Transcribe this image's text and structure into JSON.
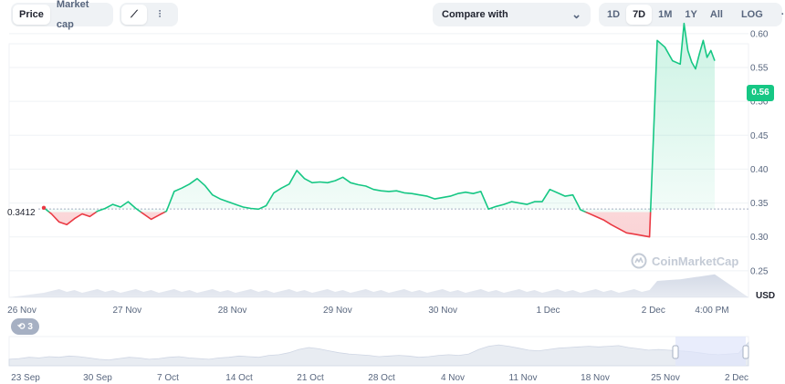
{
  "toolbar": {
    "metric_tabs": [
      {
        "label": "Price",
        "active": true
      },
      {
        "label": "Market cap",
        "active": false
      }
    ],
    "chart_style_icons": [
      {
        "icon": "line-chart-icon",
        "glyph": "⟋",
        "active": true
      },
      {
        "icon": "candlestick-icon",
        "glyph": "⫶",
        "active": false
      }
    ],
    "compare": {
      "label": "Compare with",
      "icon": "chevron-down-icon",
      "glyph": "⌄"
    },
    "ranges": [
      {
        "label": "1D",
        "active": false
      },
      {
        "label": "7D",
        "active": true
      },
      {
        "label": "1M",
        "active": false
      },
      {
        "label": "1Y",
        "active": false
      },
      {
        "label": "All",
        "active": false
      }
    ],
    "log_label": "LOG",
    "more": {
      "icon": "more-icon",
      "glyph": "···"
    }
  },
  "colors": {
    "up": "#16c784",
    "down": "#ea3943",
    "text": "#222531",
    "muted": "#58667e"
  },
  "price_badge": "0.56",
  "reference_label": "0.3412",
  "currency_label": "USD",
  "watermark": {
    "icon": "coinmarketcap-logo-icon",
    "text": "CoinMarketCap"
  },
  "events_badge": {
    "icon": "history-icon",
    "glyph": "⟲",
    "count": "3"
  },
  "chart_data": [
    {
      "type": "line",
      "title": "",
      "ylabel": "",
      "x_tick_labels": [
        "26 Nov",
        "27 Nov",
        "28 Nov",
        "29 Nov",
        "30 Nov",
        "1 Dec",
        "2 Dec",
        "4:00 PM"
      ],
      "y_tick_labels": [
        "0.25",
        "0.30",
        "0.35",
        "0.40",
        "0.45",
        "0.50",
        "0.55",
        "0.60"
      ],
      "ylim": [
        0.2,
        0.62
      ],
      "xlim": [
        0,
        175
      ],
      "reference_value": 0.3412,
      "last_value": 0.56,
      "x_unit": "hours since 26 Nov 00:00",
      "series": [
        {
          "x": [
            0,
            2,
            4,
            6,
            8,
            10,
            12,
            14,
            16,
            18,
            20,
            22,
            24,
            26,
            28,
            30,
            32,
            34,
            36,
            38,
            40,
            42,
            44,
            46,
            48,
            50,
            52,
            54,
            56,
            58,
            60,
            62,
            64,
            66,
            68,
            70,
            72,
            74,
            76,
            78,
            80,
            82,
            84,
            86,
            88,
            90,
            92,
            94,
            96,
            98,
            100,
            102,
            104,
            106,
            108,
            110,
            112,
            114,
            116,
            118,
            120,
            122,
            124,
            126,
            128,
            130,
            132,
            134,
            136,
            138,
            140,
            142,
            144,
            146,
            148,
            150,
            152,
            154,
            156,
            158,
            160,
            162,
            164,
            166,
            167,
            168,
            169,
            170,
            171,
            172,
            173,
            174,
            175
          ],
          "values": [
            0.343,
            0.334,
            0.322,
            0.318,
            0.327,
            0.334,
            0.33,
            0.338,
            0.342,
            0.348,
            0.344,
            0.352,
            0.342,
            0.334,
            0.326,
            0.332,
            0.338,
            0.367,
            0.372,
            0.378,
            0.386,
            0.376,
            0.362,
            0.356,
            0.352,
            0.348,
            0.344,
            0.342,
            0.341,
            0.346,
            0.365,
            0.372,
            0.378,
            0.398,
            0.386,
            0.38,
            0.381,
            0.38,
            0.383,
            0.388,
            0.38,
            0.377,
            0.375,
            0.37,
            0.368,
            0.367,
            0.368,
            0.365,
            0.364,
            0.362,
            0.36,
            0.356,
            0.358,
            0.36,
            0.364,
            0.366,
            0.364,
            0.367,
            0.341,
            0.345,
            0.348,
            0.352,
            0.35,
            0.348,
            0.352,
            0.352,
            0.37,
            0.365,
            0.36,
            0.362,
            0.34,
            0.335,
            0.33,
            0.325,
            0.318,
            0.312,
            0.306,
            0.304,
            0.302,
            0.3,
            0.59,
            0.58,
            0.56,
            0.555,
            0.615,
            0.575,
            0.558,
            0.548,
            0.57,
            0.59,
            0.565,
            0.575,
            0.56
          ]
        }
      ]
    },
    {
      "type": "area",
      "title": "",
      "x_tick_labels": [
        "23 Sep",
        "30 Sep",
        "7 Oct",
        "14 Oct",
        "21 Oct",
        "28 Oct",
        "4 Nov",
        "11 Nov",
        "18 Nov",
        "25 Nov",
        "2 Dec"
      ],
      "selected_range": [
        "26 Nov",
        "2 Dec"
      ],
      "series": [
        {
          "values": [
            0.3,
            0.31,
            0.33,
            0.32,
            0.34,
            0.33,
            0.35,
            0.34,
            0.32,
            0.3,
            0.29,
            0.31,
            0.33,
            0.32,
            0.3,
            0.31,
            0.33,
            0.34,
            0.32,
            0.31,
            0.3,
            0.32,
            0.33,
            0.35,
            0.34,
            0.33,
            0.36,
            0.37,
            0.4,
            0.45,
            0.48,
            0.46,
            0.43,
            0.4,
            0.38,
            0.37,
            0.36,
            0.34,
            0.35,
            0.36,
            0.35,
            0.33,
            0.34,
            0.36,
            0.37,
            0.36,
            0.38,
            0.45,
            0.5,
            0.52,
            0.5,
            0.47,
            0.44,
            0.43,
            0.45,
            0.47,
            0.48,
            0.49,
            0.5,
            0.49,
            0.5,
            0.51,
            0.48,
            0.46,
            0.44,
            0.45,
            0.44,
            0.43,
            0.42,
            0.4,
            0.38,
            0.37,
            0.38,
            0.39,
            0.56
          ]
        }
      ]
    }
  ]
}
